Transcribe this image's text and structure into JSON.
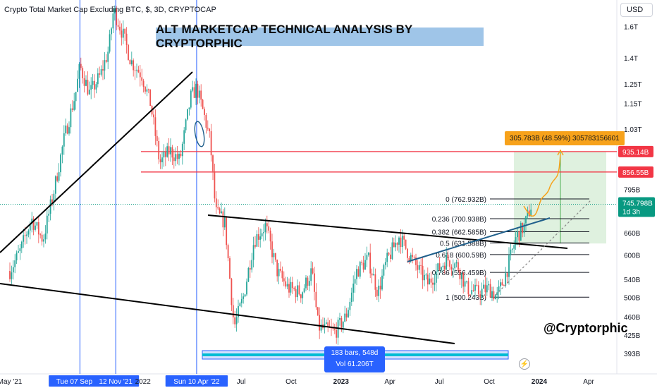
{
  "header": {
    "symbol_line": "Crypto Total Market Cap Excluding BTC, $, 3D, CRYPTOCAP"
  },
  "title": "ALT MARKETCAP TECHNICAL ANALYSIS BY CRYPTORPHIC",
  "handle": "@Cryptorphic",
  "currency_button": "USD",
  "range_info": {
    "bars": "183 bars, 548d",
    "volume": "Vol 61.206T"
  },
  "target_label": "305.783B (48.59%) 305783156601",
  "current_price": {
    "value": "745.798B",
    "countdown": "1d 3h"
  },
  "level_tags": [
    {
      "text": "935.14B",
      "value": 935.14
    },
    {
      "text": "856.55B",
      "value": 856.55
    }
  ],
  "colors": {
    "up": "#26a69a",
    "down": "#ef5350",
    "resistance": "#f23645",
    "accent": "#2962ff",
    "target": "#f7a21b",
    "title_bg": "#9fc5e8"
  },
  "chart_data": {
    "type": "candlestick",
    "title": "ALT MARKETCAP TECHNICAL ANALYSIS BY CRYPTORPHIC",
    "y_scale": "log",
    "y_unit": "USD (B / T)",
    "ylim": [
      370,
      1800
    ],
    "x_ticks": [
      {
        "label": "May '21",
        "date": "2021-05-01"
      },
      {
        "label": "Tue 07 Sep '21",
        "date": "2021-09-07",
        "highlight": true
      },
      {
        "label": "12 Nov '21",
        "date": "2021-11-12",
        "highlight": true
      },
      {
        "label": "2022",
        "date": "2022-01-01"
      },
      {
        "label": "Sun 10 Apr '22",
        "date": "2022-04-10",
        "highlight": true
      },
      {
        "label": "Jul",
        "date": "2022-07-01"
      },
      {
        "label": "Oct",
        "date": "2022-10-01"
      },
      {
        "label": "2023",
        "date": "2023-01-01",
        "bold": true
      },
      {
        "label": "Apr",
        "date": "2023-04-01"
      },
      {
        "label": "Jul",
        "date": "2023-07-01"
      },
      {
        "label": "Oct",
        "date": "2023-10-01"
      },
      {
        "label": "2024",
        "date": "2024-01-01",
        "bold": true
      },
      {
        "label": "Apr",
        "date": "2024-04-01"
      }
    ],
    "y_ticks": [
      {
        "label": "1.6T",
        "value": 1600
      },
      {
        "label": "1.4T",
        "value": 1400
      },
      {
        "label": "1.25T",
        "value": 1250
      },
      {
        "label": "1.15T",
        "value": 1150
      },
      {
        "label": "1.03T",
        "value": 1030
      },
      {
        "label": "795B",
        "value": 795
      },
      {
        "label": "660B",
        "value": 660
      },
      {
        "label": "600B",
        "value": 600
      },
      {
        "label": "540B",
        "value": 540
      },
      {
        "label": "500B",
        "value": 500
      },
      {
        "label": "460B",
        "value": 460
      },
      {
        "label": "425B",
        "value": 425
      },
      {
        "label": "393B",
        "value": 393
      }
    ],
    "price_path": [
      [
        "2021-05-01",
        560
      ],
      [
        "2021-05-20",
        610
      ],
      [
        "2021-06-10",
        700
      ],
      [
        "2021-07-01",
        640
      ],
      [
        "2021-07-20",
        780
      ],
      [
        "2021-08-10",
        1000
      ],
      [
        "2021-08-30",
        1200
      ],
      [
        "2021-09-07",
        1350
      ],
      [
        "2021-09-25",
        1200
      ],
      [
        "2021-10-15",
        1300
      ],
      [
        "2021-10-30",
        1450
      ],
      [
        "2021-11-08",
        1720
      ],
      [
        "2021-11-25",
        1550
      ],
      [
        "2021-12-10",
        1380
      ],
      [
        "2021-12-30",
        1300
      ],
      [
        "2022-01-15",
        1150
      ],
      [
        "2022-02-01",
        890
      ],
      [
        "2022-02-20",
        940
      ],
      [
        "2022-03-10",
        900
      ],
      [
        "2022-03-30",
        1180
      ],
      [
        "2022-04-10",
        1230
      ],
      [
        "2022-04-25",
        1080
      ],
      [
        "2022-05-05",
        980
      ],
      [
        "2022-05-15",
        720
      ],
      [
        "2022-06-01",
        690
      ],
      [
        "2022-06-18",
        440
      ],
      [
        "2022-07-05",
        500
      ],
      [
        "2022-07-25",
        640
      ],
      [
        "2022-08-15",
        680
      ],
      [
        "2022-09-05",
        560
      ],
      [
        "2022-09-25",
        520
      ],
      [
        "2022-10-20",
        510
      ],
      [
        "2022-11-08",
        560
      ],
      [
        "2022-11-20",
        440
      ],
      [
        "2022-12-20",
        430
      ],
      [
        "2023-01-10",
        460
      ],
      [
        "2023-01-30",
        560
      ],
      [
        "2023-02-20",
        590
      ],
      [
        "2023-03-10",
        510
      ],
      [
        "2023-03-25",
        580
      ],
      [
        "2023-04-18",
        650
      ],
      [
        "2023-05-15",
        580
      ],
      [
        "2023-06-10",
        530
      ],
      [
        "2023-06-30",
        565
      ],
      [
        "2023-07-15",
        590
      ],
      [
        "2023-08-05",
        570
      ],
      [
        "2023-08-20",
        520
      ],
      [
        "2023-09-10",
        510
      ],
      [
        "2023-10-01",
        520
      ],
      [
        "2023-10-15",
        500
      ],
      [
        "2023-11-01",
        555
      ],
      [
        "2023-11-20",
        650
      ],
      [
        "2023-12-05",
        680
      ],
      [
        "2023-12-18",
        745.8
      ]
    ],
    "resistance_levels": [
      {
        "label": "935.14B",
        "value": 935.14
      },
      {
        "label": "856.55B",
        "value": 856.55
      }
    ],
    "fib_levels": [
      {
        "label": "0 (762.932B)",
        "ratio": 0,
        "value": 762.932
      },
      {
        "label": "0.236 (700.938B)",
        "ratio": 0.236,
        "value": 700.938
      },
      {
        "label": "0.382 (662.585B)",
        "ratio": 0.382,
        "value": 662.585
      },
      {
        "label": "0.5 (631.588B)",
        "ratio": 0.5,
        "value": 631.588
      },
      {
        "label": "0.618 (600.59B)",
        "ratio": 0.618,
        "value": 600.59
      },
      {
        "label": "0.786 (556.459B)",
        "ratio": 0.786,
        "value": 556.459
      },
      {
        "label": "1 (500.243B)",
        "ratio": 1,
        "value": 500.243
      }
    ],
    "target": {
      "gain": "305.783B",
      "percent": "48.59%",
      "entry": 630,
      "price": 935.14
    },
    "current_price": 745.798,
    "grid": false,
    "legend": "none"
  }
}
